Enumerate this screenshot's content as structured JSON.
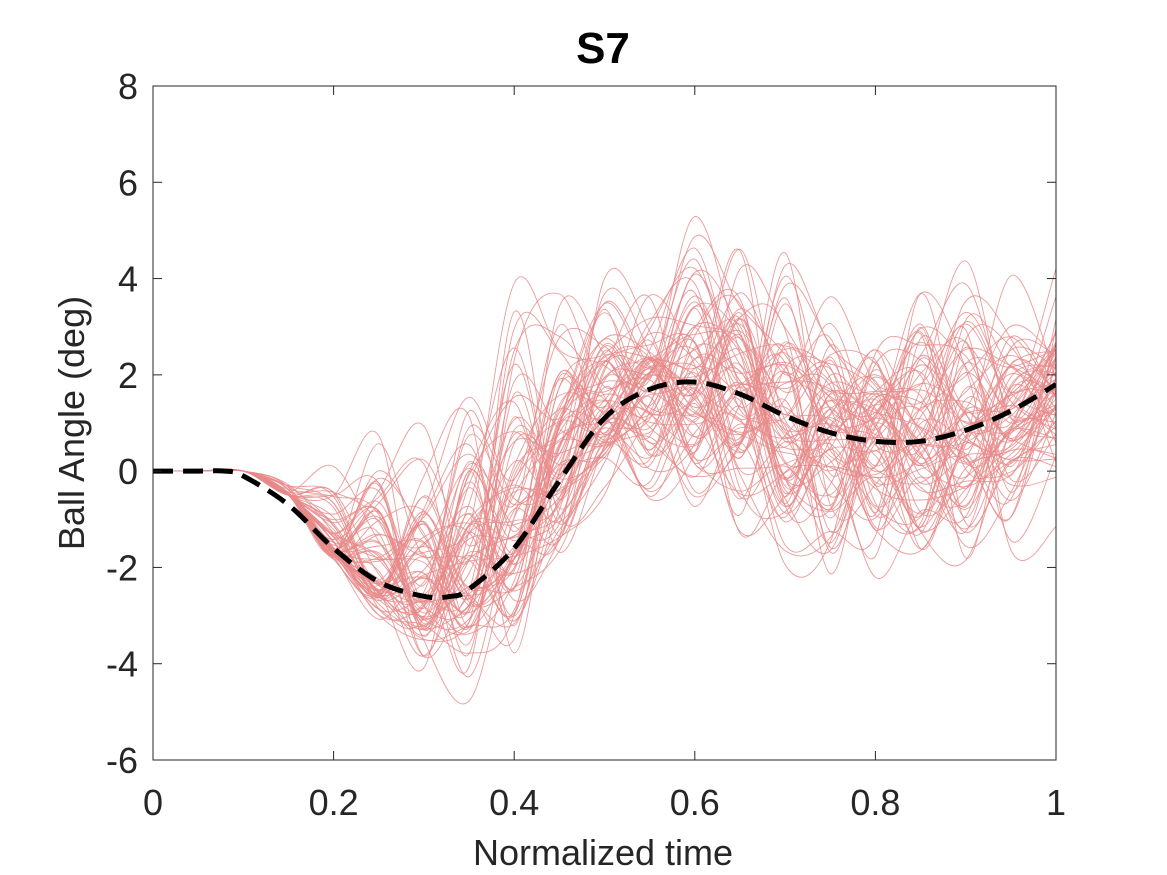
{
  "chart_data": {
    "type": "line",
    "title": "S7",
    "xlabel": "Normalized time",
    "ylabel": "Ball Angle (deg)",
    "xlim": [
      0,
      1
    ],
    "ylim": [
      -6,
      8
    ],
    "xticks": [
      0,
      0.2,
      0.4,
      0.6,
      0.8,
      1
    ],
    "xtick_labels": [
      "0",
      "0.2",
      "0.4",
      "0.6",
      "0.8",
      "1"
    ],
    "yticks": [
      -6,
      -4,
      -2,
      0,
      2,
      4,
      6,
      8
    ],
    "ytick_labels": [
      "-6",
      "-4",
      "-2",
      "0",
      "2",
      "4",
      "6",
      "8"
    ],
    "grid": false,
    "colors": {
      "trials": "#e88a8a",
      "mean": "#000000",
      "axis": "#262626"
    },
    "trials": {
      "count": 80,
      "x": [
        0,
        0.05,
        0.1,
        0.15,
        0.2,
        0.25,
        0.3,
        0.35,
        0.4,
        0.45,
        0.5,
        0.55,
        0.6,
        0.65,
        0.7,
        0.75,
        0.8,
        0.85,
        0.9,
        0.95,
        1
      ],
      "band_low": [
        0,
        0,
        0,
        -0.5,
        -2.0,
        -3.4,
        -4.6,
        -5.3,
        -4.6,
        -2.6,
        -1.2,
        -1.4,
        -2.1,
        -2.3,
        -3.0,
        -3.9,
        -3.0,
        -3.2,
        -3.3,
        -2.4,
        -1.8
      ],
      "band_high": [
        0,
        0,
        0,
        0.1,
        0.6,
        1.2,
        2.2,
        4.0,
        5.1,
        5.9,
        5.0,
        4.3,
        6.0,
        6.2,
        5.8,
        4.4,
        3.6,
        4.8,
        5.4,
        5.0,
        4.8
      ]
    },
    "series": [
      {
        "style": "dashed",
        "x": [
          0,
          0.05,
          0.08,
          0.1,
          0.15,
          0.2,
          0.25,
          0.3,
          0.33,
          0.35,
          0.4,
          0.45,
          0.5,
          0.55,
          0.6,
          0.65,
          0.7,
          0.75,
          0.8,
          0.85,
          0.9,
          0.95,
          1
        ],
        "y": [
          0,
          0,
          0,
          -0.1,
          -0.7,
          -1.6,
          -2.3,
          -2.6,
          -2.6,
          -2.45,
          -1.6,
          -0.2,
          1.1,
          1.7,
          1.85,
          1.6,
          1.15,
          0.8,
          0.62,
          0.62,
          0.85,
          1.25,
          1.8
        ]
      }
    ]
  }
}
